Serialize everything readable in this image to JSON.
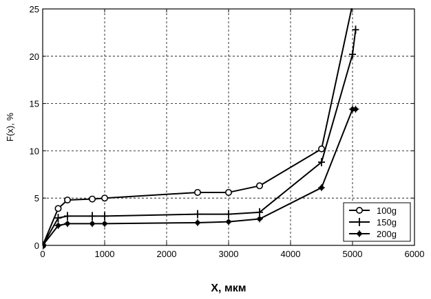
{
  "chart_data": {
    "type": "line",
    "xlabel": "X, мкм",
    "ylabel": "F(x), %",
    "xlim": [
      0,
      6000
    ],
    "ylim": [
      0,
      25
    ],
    "xticks": [
      0,
      1000,
      2000,
      3000,
      4000,
      5000,
      6000
    ],
    "yticks": [
      0,
      5,
      10,
      15,
      20,
      25
    ],
    "grid": true,
    "legend_position": "bottom-right",
    "series": [
      {
        "name": "100g",
        "marker": "circle",
        "x": [
          0,
          250,
          400,
          800,
          1000,
          2500,
          3000,
          3500,
          4500,
          5000,
          5050
        ],
        "y": [
          0,
          3.9,
          4.8,
          4.9,
          5.0,
          5.6,
          5.6,
          6.3,
          10.2,
          25.5,
          25.5
        ]
      },
      {
        "name": "150g",
        "marker": "plus",
        "x": [
          0,
          250,
          400,
          800,
          1000,
          2500,
          3000,
          3500,
          4500,
          5000,
          5050
        ],
        "y": [
          0,
          2.9,
          3.1,
          3.1,
          3.1,
          3.3,
          3.3,
          3.5,
          8.8,
          20.2,
          22.8
        ]
      },
      {
        "name": "200g",
        "marker": "star",
        "x": [
          0,
          250,
          400,
          800,
          1000,
          2500,
          3000,
          3500,
          4500,
          5000,
          5050
        ],
        "y": [
          0,
          2.1,
          2.3,
          2.3,
          2.3,
          2.4,
          2.5,
          2.8,
          6.1,
          14.4,
          14.4
        ]
      }
    ]
  }
}
